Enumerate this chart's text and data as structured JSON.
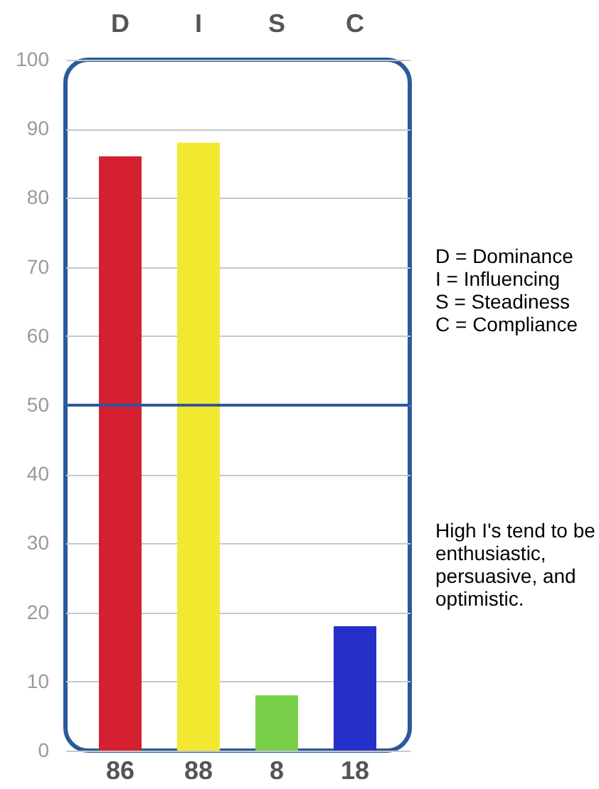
{
  "chart_data": {
    "type": "bar",
    "categories": [
      "D",
      "I",
      "S",
      "C"
    ],
    "values": [
      86,
      88,
      8,
      18
    ],
    "colors": [
      "#d42030",
      "#f2e830",
      "#78d048",
      "#2430c8"
    ],
    "ylim": [
      0,
      100
    ],
    "yticks": [
      0,
      10,
      20,
      30,
      40,
      50,
      60,
      70,
      80,
      90,
      100
    ],
    "grid": "y",
    "data_labels": true,
    "ref_lines": [
      {
        "axis": "y",
        "value": 50,
        "color": "#2a5a9a"
      }
    ],
    "annotations": [
      "D = Dominance\nI = Influencing\nS = Steadiness\nC = Compliance",
      "High I's tend to be enthusiastic, persuasive, and optimistic."
    ]
  }
}
